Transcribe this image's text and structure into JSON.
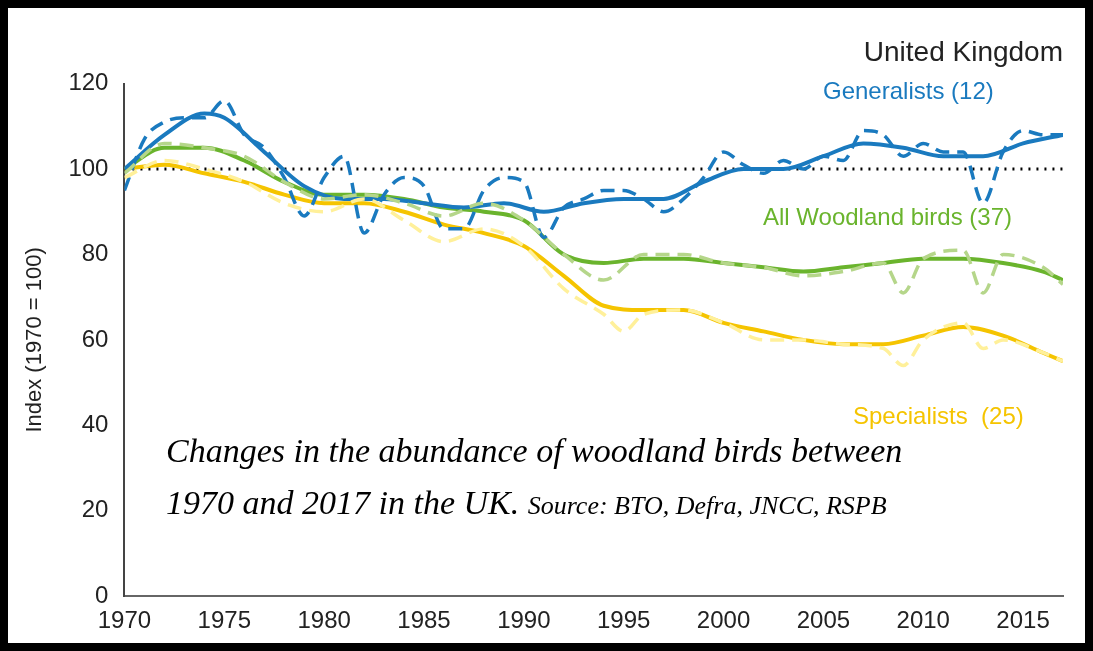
{
  "chart_data": {
    "type": "line",
    "title": "United Kingdom",
    "ylabel": "Index (1970 = 100)",
    "annotations": [
      "Changes in the abundance of woodland birds between 1970 and 2017 in the UK.",
      "Source: BTO, Defra, JNCC, RSPB"
    ],
    "xlim": [
      1970,
      2017
    ],
    "xticks": [
      1970,
      1975,
      1980,
      1985,
      1990,
      1995,
      2000,
      2005,
      2010,
      2015
    ],
    "ylim": [
      0,
      120
    ],
    "yticks": [
      0,
      20,
      40,
      60,
      80,
      100,
      120
    ],
    "grid": false,
    "legend": false,
    "marker": "none",
    "ref_lines": [
      {
        "axis": "y",
        "value": 100,
        "color": "#000000",
        "line_style": "dotted"
      }
    ],
    "series": [
      {
        "color": "#b5d68a",
        "line_style": "dashed",
        "x": [
          1970,
          1972,
          1974,
          1976,
          1978,
          1980,
          1982,
          1984,
          1986,
          1988,
          1990,
          1992,
          1994,
          1996,
          1998,
          2000,
          2002,
          2004,
          2006,
          2008,
          2009,
          2010,
          2012,
          2013,
          2014,
          2016,
          2017
        ],
        "values": [
          99,
          106,
          105,
          103,
          97,
          93,
          94,
          92,
          89,
          92,
          88,
          80,
          74,
          80,
          80,
          78,
          77,
          75,
          76,
          78,
          71,
          79,
          81,
          71,
          80,
          77,
          73
        ]
      },
      {
        "color": "#fff09a",
        "line_style": "dashed",
        "x": [
          1970,
          1972,
          1974,
          1976,
          1978,
          1980,
          1982,
          1984,
          1986,
          1988,
          1990,
          1992,
          1994,
          1995,
          1996,
          1998,
          2000,
          2002,
          2004,
          2006,
          2008,
          2009,
          2010,
          2012,
          2013,
          2014,
          2016,
          2017
        ],
        "values": [
          98,
          102,
          100,
          97,
          92,
          90,
          93,
          88,
          83,
          86,
          82,
          72,
          66,
          62,
          66,
          67,
          64,
          60,
          60,
          59,
          58,
          54,
          60,
          64,
          58,
          60,
          57,
          55
        ]
      },
      {
        "color": "#1a7abf",
        "line_style": "dashed",
        "x": [
          1970,
          1971,
          1972,
          1973,
          1974,
          1975,
          1976,
          1977,
          1978,
          1979,
          1980,
          1981,
          1982,
          1983,
          1984,
          1985,
          1986,
          1987,
          1988,
          1989,
          1990,
          1991,
          1992,
          1993,
          1994,
          1995,
          1996,
          1997,
          1998,
          1999,
          2000,
          2001,
          2002,
          2003,
          2004,
          2005,
          2006,
          2007,
          2008,
          2009,
          2010,
          2011,
          2012,
          2013,
          2014,
          2015,
          2016,
          2017
        ],
        "values": [
          95,
          107,
          111,
          112,
          112,
          116,
          108,
          105,
          98,
          89,
          98,
          103,
          85,
          94,
          98,
          96,
          86,
          86,
          95,
          98,
          97,
          84,
          91,
          93,
          95,
          95,
          93,
          90,
          93,
          98,
          104,
          101,
          99,
          102,
          100,
          103,
          102,
          109,
          108,
          103,
          106,
          104,
          104,
          92,
          104,
          109,
          108,
          108
        ]
      },
      {
        "name": "Generalists (12)",
        "color": "#1a7abf",
        "line_style": "solid",
        "x": [
          1970,
          1972,
          1974,
          1975,
          1977,
          1979,
          1981,
          1983,
          1985,
          1987,
          1989,
          1991,
          1993,
          1995,
          1997,
          1999,
          2001,
          2003,
          2005,
          2007,
          2009,
          2011,
          2013,
          2015,
          2017
        ],
        "values": [
          100,
          108,
          113,
          112,
          104,
          96,
          93,
          93,
          92,
          91,
          92,
          90,
          92,
          93,
          93,
          97,
          100,
          100,
          103,
          106,
          105,
          103,
          103,
          106,
          108
        ]
      },
      {
        "name": "All Woodland birds (37)",
        "color": "#6ab42d",
        "line_style": "solid",
        "x": [
          1970,
          1972,
          1974,
          1976,
          1978,
          1980,
          1982,
          1984,
          1986,
          1988,
          1990,
          1992,
          1994,
          1996,
          1998,
          2000,
          2002,
          2004,
          2006,
          2008,
          2010,
          2012,
          2014,
          2016,
          2017
        ],
        "values": [
          100,
          105,
          105,
          102,
          97,
          94,
          94,
          93,
          91,
          90,
          88,
          80,
          78,
          79,
          79,
          78,
          77,
          76,
          77,
          78,
          79,
          79,
          78,
          76,
          74
        ]
      },
      {
        "name": "Specialists  (25)",
        "color": "#f5c400",
        "line_style": "solid",
        "x": [
          1970,
          1972,
          1974,
          1976,
          1978,
          1980,
          1982,
          1984,
          1986,
          1988,
          1990,
          1992,
          1994,
          1996,
          1998,
          2000,
          2002,
          2004,
          2006,
          2008,
          2010,
          2012,
          2014,
          2016,
          2017
        ],
        "values": [
          100,
          101,
          99,
          97,
          94,
          92,
          92,
          90,
          87,
          85,
          82,
          75,
          68,
          67,
          67,
          64,
          62,
          60,
          59,
          59,
          61,
          63,
          61,
          57,
          55
        ]
      }
    ]
  }
}
